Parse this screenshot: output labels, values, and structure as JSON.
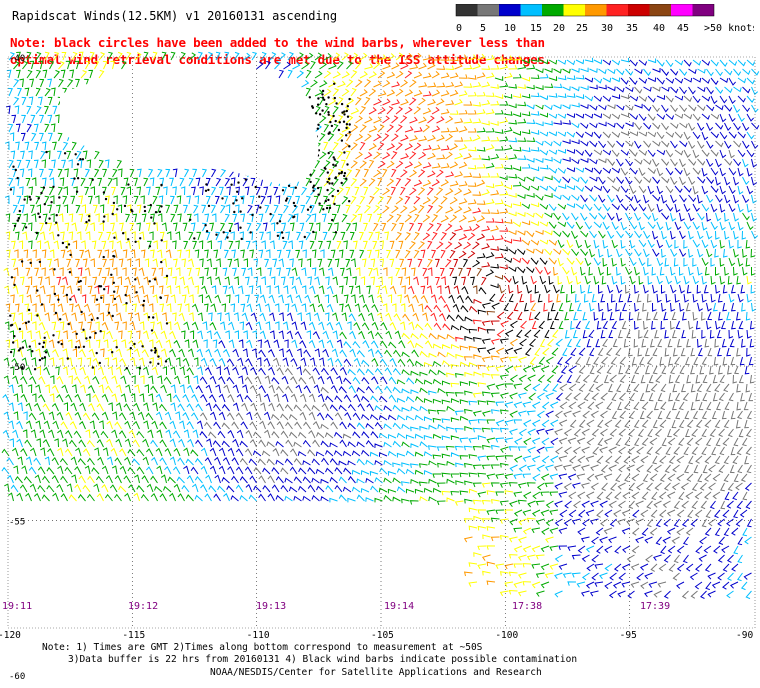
{
  "title": "Rapidscat Winds(12.5KM) v1 20160131 ascending",
  "note": "Note: black circles have been added to the wind barbs, wherever less than optimal wind retrieval conditions are met due to the ISS attitude changes.",
  "color_scale": {
    "labels": [
      "0",
      "5",
      "10",
      "15",
      "20",
      "25",
      "30",
      "35",
      "40",
      "45",
      ">50 knots"
    ],
    "colors": [
      "#333333",
      "#777777",
      "#0000cc",
      "#00bfff",
      "#00aa00",
      "#ffff00",
      "#ff9900",
      "#ff2222",
      "#cc0000",
      "#8b4513",
      "#ff00ff",
      "#800080"
    ]
  },
  "axes": {
    "lat_labels": [
      "-40",
      "-50",
      "-55",
      "-60"
    ],
    "lon_labels": [
      "-120",
      "-115",
      "-110",
      "-105",
      "-100",
      "-95",
      "-90"
    ]
  },
  "times": [
    "19:11",
    "19:12",
    "19:13",
    "19:14",
    "17:38",
    "17:39"
  ],
  "footer": {
    "line1": "Note: 1) Times are GMT 2)Times along bottom correspond to measurement at ~50S",
    "line2": "3)Data buffer is 22 hrs from 20160131 4) Black wind barbs indicate possible contamination",
    "line3": "NOAA/NESDIS/Center for Satellite Applications and Research"
  }
}
